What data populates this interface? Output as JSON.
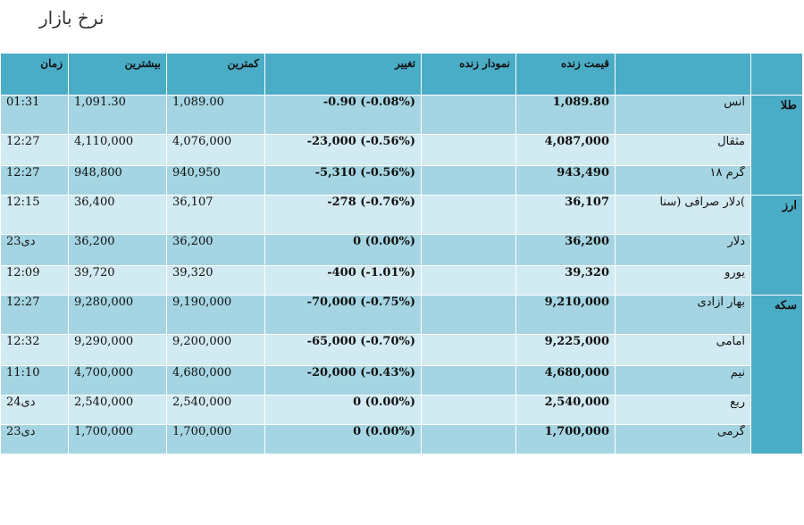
{
  "page_title": "نرخ بازار",
  "headers": {
    "time": "زمان",
    "high": "بیشترین",
    "low": "کمترین",
    "change": "تغییر",
    "live_chart": "نمودار زنده",
    "live_price": "قیمت زنده",
    "name": "",
    "category": ""
  },
  "categories": [
    {
      "label": "طلا",
      "rows": [
        {
          "time": "01:31",
          "high": "1,091.30",
          "low": "1,089.00",
          "change": "-0.90 (-0.08%)",
          "live": "1,089.80",
          "name": "انس"
        },
        {
          "time": "12:27",
          "high": "4,110,000",
          "low": "4,076,000",
          "change": "-23,000 (-0.56%)",
          "live": "4,087,000",
          "name": "مثقال"
        },
        {
          "time": "12:27",
          "high": "948,800",
          "low": "940,950",
          "change": "-5,310 (-0.56%)",
          "live": "943,490",
          "name": "گرم ۱۸"
        }
      ]
    },
    {
      "label": "ارز",
      "rows": [
        {
          "time": "12:15",
          "high": "36,400",
          "low": "36,107",
          "change": "-278 (-0.76%)",
          "live": "36,107",
          "name": "دلار صرافی (سنا("
        },
        {
          "time": "23دی",
          "high": "36,200",
          "low": "36,200",
          "change": "0 (0.00%)",
          "live": "36,200",
          "name": "دلار"
        },
        {
          "time": "12:09",
          "high": "39,720",
          "low": "39,320",
          "change": "-400 (-1.01%)",
          "live": "39,320",
          "name": "یورو"
        }
      ]
    },
    {
      "label": "سکه",
      "rows": [
        {
          "time": "12:27",
          "high": "9,280,000",
          "low": "9,190,000",
          "change": "-70,000 (-0.75%)",
          "live": "9,210,000",
          "name": "بهار آزادی"
        },
        {
          "time": "12:32",
          "high": "9,290,000",
          "low": "9,200,000",
          "change": "-65,000 (-0.70%)",
          "live": "9,225,000",
          "name": "امامی"
        },
        {
          "time": "11:10",
          "high": "4,700,000",
          "low": "4,680,000",
          "change": "-20,000 (-0.43%)",
          "live": "4,680,000",
          "name": "نیم"
        },
        {
          "time": "24دی",
          "high": "2,540,000",
          "low": "2,540,000",
          "change": "0 (0.00%)",
          "live": "2,540,000",
          "name": "ربع"
        },
        {
          "time": "23دی",
          "high": "1,700,000",
          "low": "1,700,000",
          "change": "0 (0.00%)",
          "live": "1,700,000",
          "name": "گرمی"
        }
      ]
    }
  ],
  "colors": {
    "header_bg": "#4bacc6",
    "row_dark": "#a5d5e2",
    "row_light": "#d2eaf1"
  }
}
